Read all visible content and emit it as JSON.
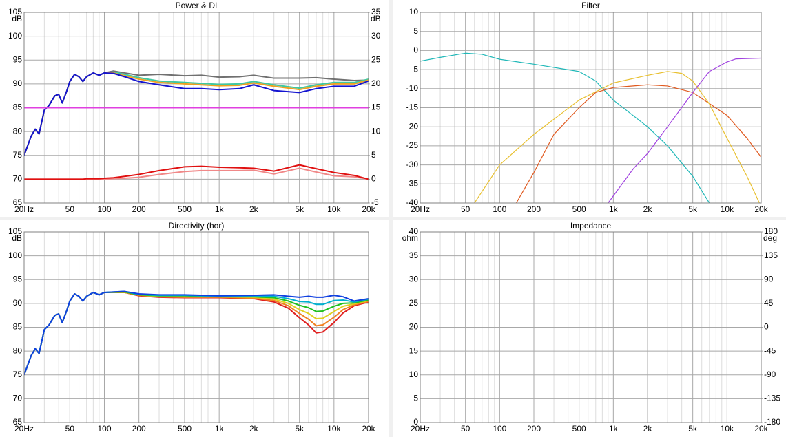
{
  "chart_data": [
    {
      "type": "line",
      "title": "Power & DI",
      "ylabel": "dB",
      "y2label": "dB",
      "xscale": "log",
      "xlim": [
        20,
        20000
      ],
      "ylim": [
        65,
        105
      ],
      "y2lim": [
        -5,
        35
      ],
      "xticks": [
        {
          "value": 20,
          "label": "20Hz"
        },
        50,
        100,
        200,
        500,
        {
          "value": 1000,
          "label": "1k"
        },
        {
          "value": 2000,
          "label": "2k"
        },
        {
          "value": 5000,
          "label": "5k"
        },
        {
          "value": 10000,
          "label": "10k"
        },
        {
          "value": 20000,
          "label": "20k"
        }
      ],
      "xminorticks": [
        30,
        40,
        60,
        70,
        80,
        90,
        300,
        400,
        600,
        700,
        800,
        900,
        3000,
        4000,
        6000,
        7000,
        8000,
        9000
      ],
      "yticks": [
        105,
        100,
        95,
        90,
        85,
        80,
        75,
        70,
        65
      ],
      "y2ticks": [
        35,
        30,
        25,
        20,
        15,
        10,
        5,
        0,
        -5
      ],
      "x": [
        20,
        23,
        25,
        27,
        30,
        33,
        37,
        40,
        43,
        47,
        50,
        55,
        60,
        65,
        70,
        80,
        90,
        100,
        120,
        150,
        200,
        300,
        500,
        700,
        1000,
        1500,
        2000,
        3000,
        5000,
        7000,
        10000,
        15000,
        20000
      ],
      "series": [
        {
          "color": "#707070",
          "values": [
            75,
            79,
            80.5,
            79.5,
            84.5,
            85.5,
            87.5,
            87.8,
            86,
            88.5,
            90.5,
            92,
            91.5,
            90.5,
            91.5,
            92.3,
            91.8,
            92.3,
            92.7,
            92.3,
            91.8,
            92,
            91.7,
            91.8,
            91.4,
            91.5,
            91.8,
            91.2,
            91.2,
            91.3,
            91,
            90.7,
            90.8
          ]
        },
        {
          "color": "#40c8a0",
          "values": [
            75,
            79,
            80.5,
            79.5,
            84.5,
            85.5,
            87.5,
            87.8,
            86,
            88.5,
            90.5,
            92,
            91.5,
            90.5,
            91.5,
            92.3,
            91.8,
            92.3,
            92.5,
            92,
            91.3,
            90.6,
            90.3,
            90.1,
            89.9,
            90,
            90.5,
            89.8,
            89.1,
            89.8,
            90.3,
            90.3,
            91
          ]
        },
        {
          "color": "#f0a020",
          "values": [
            75,
            79,
            80.5,
            79.5,
            84.5,
            85.5,
            87.5,
            87.8,
            86,
            88.5,
            90.5,
            92,
            91.5,
            90.5,
            91.5,
            92.3,
            91.8,
            92.3,
            92.3,
            91.7,
            91,
            90.3,
            90,
            89.8,
            89.6,
            89.7,
            90.2,
            89.5,
            88.8,
            89.5,
            90,
            90,
            90.8
          ]
        },
        {
          "color": "#1414d0",
          "values": [
            75,
            79,
            80.5,
            79.5,
            84.5,
            85.5,
            87.5,
            87.8,
            86,
            88.5,
            90.5,
            92,
            91.5,
            90.5,
            91.5,
            92.3,
            91.8,
            92.3,
            92.2,
            91.5,
            90.5,
            89.8,
            89,
            89,
            88.8,
            89,
            89.8,
            88.6,
            88.2,
            89,
            89.5,
            89.5,
            90.6
          ]
        },
        {
          "color": "#e040e0",
          "values": [
            85,
            85,
            85,
            85,
            85,
            85,
            85,
            85,
            85,
            85,
            85,
            85,
            85,
            85,
            85,
            85,
            85,
            85,
            85,
            85,
            85,
            85,
            85,
            85,
            85,
            85,
            85,
            85,
            85,
            85,
            85,
            85,
            85
          ]
        },
        {
          "color": "#f08888",
          "axis": "y2",
          "values": [
            0,
            0,
            0,
            0,
            0,
            0,
            0,
            0,
            0,
            0,
            0,
            0,
            0,
            0,
            0,
            0,
            0,
            0,
            0.1,
            0.2,
            0.4,
            1,
            1.6,
            1.8,
            1.8,
            1.8,
            1.9,
            1.1,
            2.3,
            1.5,
            0.7,
            0.5,
            0
          ]
        },
        {
          "color": "#e01010",
          "axis": "y2",
          "values": [
            0,
            0,
            0,
            0,
            0,
            0,
            0,
            0,
            0,
            0,
            0,
            0,
            0,
            0,
            0.1,
            0.1,
            0.1,
            0.2,
            0.3,
            0.6,
            1,
            1.8,
            2.6,
            2.7,
            2.5,
            2.4,
            2.3,
            1.7,
            3,
            2.2,
            1.4,
            0.8,
            0
          ]
        }
      ]
    },
    {
      "type": "line",
      "title": "Filter",
      "xscale": "log",
      "xlim": [
        20,
        20000
      ],
      "ylim": [
        -40,
        10
      ],
      "xticks": [
        {
          "value": 20,
          "label": "20Hz"
        },
        50,
        100,
        200,
        500,
        {
          "value": 1000,
          "label": "1k"
        },
        {
          "value": 2000,
          "label": "2k"
        },
        {
          "value": 5000,
          "label": "5k"
        },
        {
          "value": 10000,
          "label": "10k"
        },
        {
          "value": 20000,
          "label": "20k"
        }
      ],
      "xminorticks": [
        30,
        40,
        60,
        70,
        80,
        90,
        300,
        400,
        600,
        700,
        800,
        900,
        3000,
        4000,
        6000,
        7000,
        8000,
        9000
      ],
      "yticks": [
        10,
        5,
        0,
        -5,
        -10,
        -15,
        -20,
        -25,
        -30,
        -35,
        -40
      ],
      "series": [
        {
          "color": "#20b8b8",
          "x": [
            20,
            30,
            50,
            70,
            100,
            200,
            500,
            700,
            1000,
            2000,
            3000,
            5000,
            7000
          ],
          "values": [
            -2.8,
            -1.8,
            -0.7,
            -1,
            -2.3,
            -3.6,
            -5.5,
            -8,
            -13,
            -20,
            -25,
            -33,
            -40
          ]
        },
        {
          "color": "#e05a20",
          "x": [
            140,
            200,
            300,
            500,
            700,
            1000,
            2000,
            3000,
            5000,
            10000,
            15000,
            20000
          ],
          "values": [
            -40,
            -32,
            -22,
            -15,
            -11,
            -9.7,
            -9,
            -9.3,
            -11,
            -17,
            -23,
            -28
          ]
        },
        {
          "color": "#e8c030",
          "x": [
            60,
            100,
            200,
            500,
            1000,
            2000,
            3000,
            4000,
            5000,
            7000,
            10000,
            15000,
            20000
          ],
          "values": [
            -40,
            -30,
            -22,
            -13,
            -8.5,
            -6.5,
            -5.5,
            -6,
            -8,
            -14,
            -23,
            -33,
            -41
          ]
        },
        {
          "color": "#a040e0",
          "x": [
            900,
            1500,
            2000,
            3000,
            5000,
            7000,
            10000,
            12000,
            20000
          ],
          "values": [
            -40,
            -31,
            -27,
            -20,
            -11,
            -5.5,
            -3,
            -2.2,
            -2
          ]
        }
      ]
    },
    {
      "type": "line",
      "title": "Directivity (hor)",
      "ylabel": "dB",
      "xscale": "log",
      "xlim": [
        20,
        20000
      ],
      "ylim": [
        65,
        105
      ],
      "xticks": [
        {
          "value": 20,
          "label": "20Hz"
        },
        50,
        100,
        200,
        500,
        {
          "value": 1000,
          "label": "1k"
        },
        {
          "value": 2000,
          "label": "2k"
        },
        {
          "value": 5000,
          "label": "5k"
        },
        {
          "value": 10000,
          "label": "10k"
        },
        {
          "value": 20000,
          "label": "20k"
        }
      ],
      "xminorticks": [
        30,
        40,
        60,
        70,
        80,
        90,
        300,
        400,
        600,
        700,
        800,
        900,
        3000,
        4000,
        6000,
        7000,
        8000,
        9000
      ],
      "yticks": [
        105,
        100,
        95,
        90,
        85,
        80,
        75,
        70,
        65
      ],
      "x": [
        20,
        23,
        25,
        27,
        30,
        33,
        37,
        40,
        43,
        47,
        50,
        55,
        60,
        65,
        70,
        80,
        90,
        100,
        150,
        200,
        300,
        500,
        1000,
        2000,
        3000,
        4000,
        5000,
        6000,
        7000,
        8000,
        10000,
        12000,
        15000,
        20000
      ],
      "series": [
        {
          "color": "#e02020",
          "values": [
            75,
            79,
            80.5,
            79.5,
            84.5,
            85.5,
            87.5,
            87.8,
            86,
            88.5,
            90.5,
            92,
            91.5,
            90.5,
            91.5,
            92.3,
            91.8,
            92.3,
            92.3,
            91.6,
            91.3,
            91.2,
            91.2,
            91,
            90.3,
            89,
            87,
            85.5,
            83.8,
            84,
            86,
            88,
            89.5,
            90.3
          ]
        },
        {
          "color": "#f08020",
          "values": [
            75,
            79,
            80.5,
            79.5,
            84.5,
            85.5,
            87.5,
            87.8,
            86,
            88.5,
            90.5,
            92,
            91.5,
            90.5,
            91.5,
            92.3,
            91.8,
            92.3,
            92.3,
            91.7,
            91.4,
            91.3,
            91.3,
            91.1,
            90.6,
            89.5,
            87.9,
            86.7,
            85.3,
            85.5,
            87.1,
            88.7,
            89.7,
            90.4
          ]
        },
        {
          "color": "#e0d020",
          "values": [
            75,
            79,
            80.5,
            79.5,
            84.5,
            85.5,
            87.5,
            87.8,
            86,
            88.5,
            90.5,
            92,
            91.5,
            90.5,
            91.5,
            92.3,
            91.8,
            92.3,
            92.4,
            91.8,
            91.5,
            91.4,
            91.4,
            91.3,
            90.9,
            90,
            88.7,
            87.9,
            86.8,
            86.9,
            88.3,
            89.4,
            89.9,
            90.6
          ]
        },
        {
          "color": "#20c020",
          "values": [
            75,
            79,
            80.5,
            79.5,
            84.5,
            85.5,
            87.5,
            87.8,
            86,
            88.5,
            90.5,
            92,
            91.5,
            90.5,
            91.5,
            92.3,
            91.8,
            92.3,
            92.4,
            91.8,
            91.6,
            91.6,
            91.4,
            91.4,
            91.2,
            90.5,
            89.6,
            89.1,
            88.3,
            88.4,
            89.4,
            90,
            90.1,
            90.7
          ]
        },
        {
          "color": "#00b0d0",
          "values": [
            75,
            79,
            80.5,
            79.5,
            84.5,
            85.5,
            87.5,
            87.8,
            86,
            88.5,
            90.5,
            92,
            91.5,
            90.5,
            91.5,
            92.3,
            91.8,
            92.3,
            92.5,
            91.9,
            91.7,
            91.7,
            91.5,
            91.6,
            91.5,
            91,
            90.4,
            90.3,
            89.8,
            89.8,
            90.6,
            90.7,
            90.3,
            90.9
          ]
        },
        {
          "color": "#1040e0",
          "values": [
            75,
            79,
            80.5,
            79.5,
            84.5,
            85.5,
            87.5,
            87.8,
            86,
            88.5,
            90.5,
            92,
            91.5,
            90.5,
            91.5,
            92.3,
            91.8,
            92.3,
            92.5,
            92,
            91.8,
            91.8,
            91.6,
            91.7,
            91.8,
            91.5,
            91.3,
            91.5,
            91.3,
            91.3,
            91.7,
            91.4,
            90.5,
            91
          ]
        }
      ]
    },
    {
      "type": "line",
      "title": "Impedance",
      "ylabel": "ohm",
      "y2label": "deg",
      "xscale": "log",
      "xlim": [
        20,
        20000
      ],
      "ylim": [
        0,
        40
      ],
      "y2lim": [
        -180,
        180
      ],
      "xticks": [
        {
          "value": 20,
          "label": "20Hz"
        },
        50,
        100,
        200,
        500,
        {
          "value": 1000,
          "label": "1k"
        },
        {
          "value": 2000,
          "label": "2k"
        },
        {
          "value": 5000,
          "label": "5k"
        },
        {
          "value": 10000,
          "label": "10k"
        },
        {
          "value": 20000,
          "label": "20k"
        }
      ],
      "xminorticks": [
        30,
        40,
        60,
        70,
        80,
        90,
        300,
        400,
        600,
        700,
        800,
        900,
        3000,
        4000,
        6000,
        7000,
        8000,
        9000
      ],
      "yticks": [
        40,
        35,
        30,
        25,
        20,
        15,
        10,
        5,
        0
      ],
      "y2ticks": [
        180,
        135,
        90,
        45,
        0,
        -45,
        -90,
        -135,
        -180
      ],
      "series": []
    }
  ]
}
